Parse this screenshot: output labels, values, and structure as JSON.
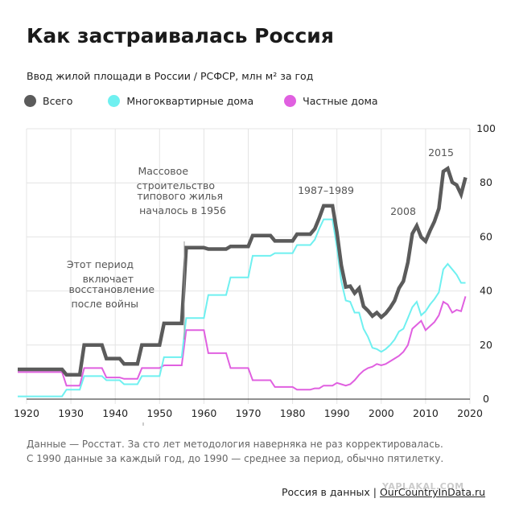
{
  "title": "Как застраивалась Россия",
  "subtitle": "Ввод жилой площади в России / РСФСР, млн м² за год",
  "legend": [
    {
      "label": "Всего",
      "color": "#5b5b5b"
    },
    {
      "label": "Многоквартирные дома",
      "color": "#6ff0f0"
    },
    {
      "label": "Частные дома",
      "color": "#e060e0"
    }
  ],
  "annotations": {
    "postwar": [
      "Этот период",
      "включает",
      "восстановление",
      "после войны"
    ],
    "mass": [
      "Массовое",
      "строительство",
      "типового жилья",
      "началось в 1956"
    ],
    "period_1987": "1987–1989",
    "y2008": "2008",
    "y2015": "2015"
  },
  "footnote": [
    "Данные — Росстат. За сто лет методология наверняка не раз корректировалась.",
    "С 1990 данные за каждый год, до 1990 — среднее за период, обычно пятилетку."
  ],
  "credit": {
    "prefix": "Россия в данных | ",
    "site": "OurCountryInData.ru"
  },
  "watermark": "YAPLAKAL.COM",
  "chart_data": {
    "type": "line",
    "xlim": [
      1920,
      2020
    ],
    "ylim": [
      0,
      100
    ],
    "x_ticks": [
      1920,
      1930,
      1940,
      1950,
      1960,
      1970,
      1980,
      1990,
      2000,
      2010,
      2020
    ],
    "y_ticks": [
      0,
      20,
      40,
      60,
      80,
      100
    ],
    "grid": true,
    "series": [
      {
        "name": "Всего",
        "color": "#5b5b5b",
        "points": [
          [
            1918,
            11
          ],
          [
            1928,
            11
          ],
          [
            1929,
            9
          ],
          [
            1932,
            9
          ],
          [
            1933,
            20
          ],
          [
            1937,
            20
          ],
          [
            1938,
            15
          ],
          [
            1941,
            15
          ],
          [
            1942,
            13
          ],
          [
            1945,
            13
          ],
          [
            1946,
            20
          ],
          [
            1950,
            20
          ],
          [
            1951,
            28
          ],
          [
            1955,
            28
          ],
          [
            1956,
            56
          ],
          [
            1960,
            56
          ],
          [
            1961,
            55.5
          ],
          [
            1965,
            55.5
          ],
          [
            1966,
            56.5
          ],
          [
            1970,
            56.5
          ],
          [
            1971,
            60.5
          ],
          [
            1975,
            60.5
          ],
          [
            1976,
            58.5
          ],
          [
            1980,
            58.5
          ],
          [
            1981,
            61
          ],
          [
            1984,
            61
          ],
          [
            1985,
            63
          ],
          [
            1986,
            67
          ],
          [
            1987,
            71.5
          ],
          [
            1989,
            71.5
          ],
          [
            1990,
            61.7
          ],
          [
            1991,
            49.4
          ],
          [
            1992,
            41.5
          ],
          [
            1993,
            41.8
          ],
          [
            1994,
            39.2
          ],
          [
            1995,
            41
          ],
          [
            1996,
            34.3
          ],
          [
            1997,
            32.7
          ],
          [
            1998,
            30.7
          ],
          [
            1999,
            32
          ],
          [
            2000,
            30.3
          ],
          [
            2001,
            31.7
          ],
          [
            2002,
            33.8
          ],
          [
            2003,
            36.4
          ],
          [
            2004,
            41
          ],
          [
            2005,
            43.6
          ],
          [
            2006,
            50.6
          ],
          [
            2007,
            61.2
          ],
          [
            2008,
            64.1
          ],
          [
            2009,
            59.9
          ],
          [
            2010,
            58.4
          ],
          [
            2011,
            62.3
          ],
          [
            2012,
            65.7
          ],
          [
            2013,
            70.5
          ],
          [
            2014,
            84.2
          ],
          [
            2015,
            85.3
          ],
          [
            2016,
            80.2
          ],
          [
            2017,
            79.2
          ],
          [
            2018,
            75.7
          ],
          [
            2019,
            82
          ]
        ]
      },
      {
        "name": "Многоквартирные дома",
        "color": "#6ff0f0",
        "points": [
          [
            1918,
            1
          ],
          [
            1928,
            1
          ],
          [
            1929,
            3.5
          ],
          [
            1932,
            3.5
          ],
          [
            1933,
            8.5
          ],
          [
            1937,
            8.5
          ],
          [
            1938,
            7
          ],
          [
            1941,
            7
          ],
          [
            1942,
            5.5
          ],
          [
            1945,
            5.5
          ],
          [
            1946,
            8.5
          ],
          [
            1950,
            8.5
          ],
          [
            1951,
            15.5
          ],
          [
            1955,
            15.5
          ],
          [
            1956,
            30
          ],
          [
            1960,
            30
          ],
          [
            1961,
            38.5
          ],
          [
            1965,
            38.5
          ],
          [
            1966,
            45
          ],
          [
            1970,
            45
          ],
          [
            1971,
            53
          ],
          [
            1975,
            53
          ],
          [
            1976,
            54
          ],
          [
            1980,
            54
          ],
          [
            1981,
            57
          ],
          [
            1984,
            57
          ],
          [
            1985,
            59
          ],
          [
            1986,
            63
          ],
          [
            1987,
            66.5
          ],
          [
            1989,
            66.5
          ],
          [
            1990,
            56
          ],
          [
            1991,
            43.5
          ],
          [
            1992,
            36.5
          ],
          [
            1993,
            36
          ],
          [
            1994,
            32
          ],
          [
            1995,
            32
          ],
          [
            1996,
            26
          ],
          [
            1997,
            23
          ],
          [
            1998,
            19
          ],
          [
            1999,
            18.5
          ],
          [
            2000,
            17.5
          ],
          [
            2001,
            18.5
          ],
          [
            2002,
            20
          ],
          [
            2003,
            22
          ],
          [
            2004,
            25
          ],
          [
            2005,
            26
          ],
          [
            2006,
            30
          ],
          [
            2007,
            34
          ],
          [
            2008,
            36
          ],
          [
            2009,
            31
          ],
          [
            2010,
            32.5
          ],
          [
            2011,
            35
          ],
          [
            2012,
            37
          ],
          [
            2013,
            39.5
          ],
          [
            2014,
            48
          ],
          [
            2015,
            50
          ],
          [
            2016,
            48
          ],
          [
            2017,
            46
          ],
          [
            2018,
            43
          ],
          [
            2019,
            43
          ]
        ]
      },
      {
        "name": "Частные дома",
        "color": "#e060e0",
        "points": [
          [
            1918,
            10
          ],
          [
            1928,
            10
          ],
          [
            1929,
            5
          ],
          [
            1932,
            5
          ],
          [
            1933,
            11.5
          ],
          [
            1937,
            11.5
          ],
          [
            1938,
            8
          ],
          [
            1941,
            8
          ],
          [
            1942,
            7.5
          ],
          [
            1945,
            7.5
          ],
          [
            1946,
            11.5
          ],
          [
            1950,
            11.5
          ],
          [
            1951,
            12.5
          ],
          [
            1955,
            12.5
          ],
          [
            1956,
            25.5
          ],
          [
            1960,
            25.5
          ],
          [
            1961,
            17
          ],
          [
            1965,
            17
          ],
          [
            1966,
            11.5
          ],
          [
            1970,
            11.5
          ],
          [
            1971,
            7
          ],
          [
            1975,
            7
          ],
          [
            1976,
            4.5
          ],
          [
            1980,
            4.5
          ],
          [
            1981,
            3.5
          ],
          [
            1984,
            3.5
          ],
          [
            1985,
            4
          ],
          [
            1986,
            4
          ],
          [
            1987,
            5
          ],
          [
            1989,
            5
          ],
          [
            1990,
            6
          ],
          [
            1991,
            5.5
          ],
          [
            1992,
            5
          ],
          [
            1993,
            5.5
          ],
          [
            1994,
            7
          ],
          [
            1995,
            9
          ],
          [
            1996,
            10.5
          ],
          [
            1997,
            11.5
          ],
          [
            1998,
            12
          ],
          [
            1999,
            13
          ],
          [
            2000,
            12.5
          ],
          [
            2001,
            13
          ],
          [
            2002,
            14
          ],
          [
            2003,
            15
          ],
          [
            2004,
            16
          ],
          [
            2005,
            17.5
          ],
          [
            2006,
            20
          ],
          [
            2007,
            26
          ],
          [
            2008,
            27.5
          ],
          [
            2009,
            29
          ],
          [
            2010,
            25.5
          ],
          [
            2011,
            27
          ],
          [
            2012,
            28.5
          ],
          [
            2013,
            31
          ],
          [
            2014,
            36
          ],
          [
            2015,
            35
          ],
          [
            2016,
            32
          ],
          [
            2017,
            33
          ],
          [
            2018,
            32.5
          ],
          [
            2019,
            38
          ]
        ]
      }
    ]
  }
}
